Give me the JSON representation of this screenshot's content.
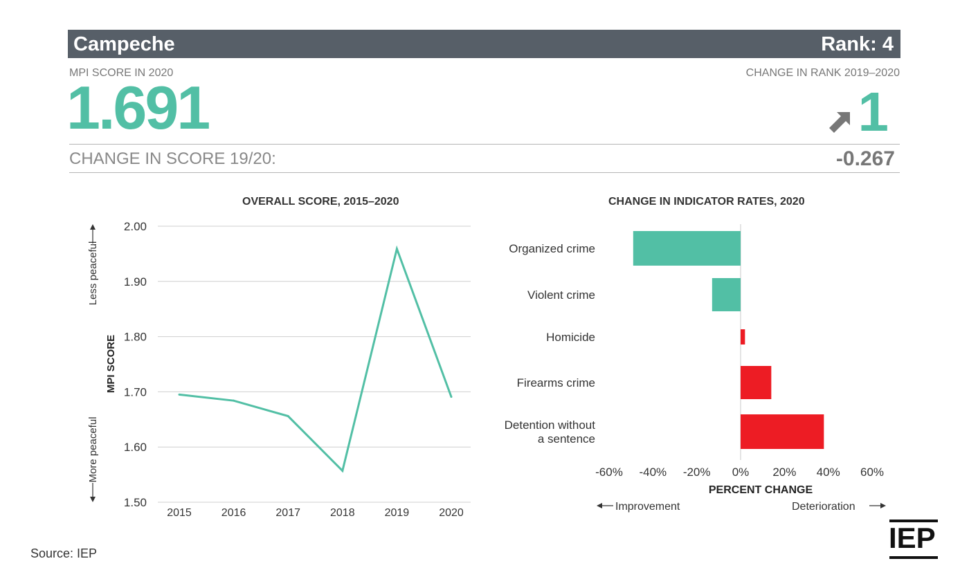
{
  "header": {
    "state": "Campeche",
    "rank_label": "Rank: 4"
  },
  "score": {
    "label": "MPI SCORE IN 2020",
    "value": "1.691",
    "rank_change_label": "CHANGE IN RANK 2019–2020",
    "rank_change_value": "1",
    "rank_change_icon": "arrow-up-right-icon",
    "score_change_label": "CHANGE IN SCORE 19/20:",
    "score_change_value": "-0.267"
  },
  "colors": {
    "teal": "#52bfa5",
    "red": "#ed1c24",
    "header": "#575f68"
  },
  "chart_data": [
    {
      "type": "line",
      "title": "OVERALL SCORE, 2015–2020",
      "ylabel": "MPI SCORE",
      "y_annotation_top": "Less peaceful",
      "y_annotation_bottom": "More peaceful",
      "x": [
        "2015",
        "2016",
        "2017",
        "2018",
        "2019",
        "2020"
      ],
      "values": [
        1.695,
        1.684,
        1.656,
        1.557,
        1.959,
        1.691
      ],
      "ylim": [
        1.5,
        2.0
      ],
      "yticks": [
        "1.50",
        "1.60",
        "1.70",
        "1.80",
        "1.90",
        "2.00"
      ],
      "grid": true,
      "color": "#52bfa5"
    },
    {
      "type": "bar",
      "orientation": "horizontal",
      "title": "CHANGE IN INDICATOR RATES, 2020",
      "xlabel": "PERCENT CHANGE",
      "categories": [
        "Organized crime",
        "Violent crime",
        "Homicide",
        "Firearms crime",
        "Detention without a sentence"
      ],
      "category_lines": [
        [
          "Organized crime"
        ],
        [
          "Violent crime"
        ],
        [
          "Homicide"
        ],
        [
          "Firearms crime"
        ],
        [
          "Detention without",
          "a sentence"
        ]
      ],
      "values": [
        -49,
        -13,
        2,
        14,
        38
      ],
      "xlim": [
        -60,
        60
      ],
      "xticks": [
        "-60%",
        "-40%",
        "-20%",
        "0%",
        "20%",
        "40%",
        "60%"
      ],
      "negative_color": "#52bfa5",
      "positive_color": "#ed1c24",
      "legend_left": "Improvement",
      "legend_right": "Deterioration"
    }
  ],
  "source": "Source: IEP",
  "logo": "IEP"
}
